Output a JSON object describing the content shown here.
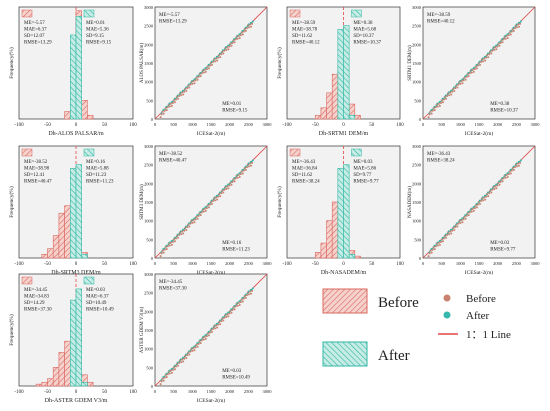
{
  "colors": {
    "before": "#d9675f",
    "before_fill": "#f6d2cd",
    "after": "#2fb7a4",
    "after_fill": "#c7ece5",
    "panel_bg": "#f2f2f2",
    "line": "#e04545",
    "point_before": "#c9826f",
    "point_after": "#36b8ac"
  },
  "legend": {
    "before": "Before",
    "after": "After",
    "line": "1：1 Line"
  },
  "chart_data": [
    {
      "type": "bar",
      "id": "hist-alos",
      "xlabel": "Dh-ALOS PALSAR/m",
      "ylabel": "Frequency(%)",
      "xlim": [
        -100,
        100
      ],
      "xticks": [
        "-100",
        "-50",
        "0",
        "50",
        "100"
      ],
      "centers": [
        -65,
        -55,
        -45,
        -35,
        -25,
        -15,
        -5,
        5,
        15,
        25
      ],
      "before": [
        0,
        0,
        0,
        0,
        0,
        4,
        18,
        58,
        10,
        2
      ],
      "after": [
        0,
        0,
        0,
        0,
        0,
        0,
        45,
        55,
        0,
        0
      ],
      "stats_before": [
        "ME=-5.57",
        "MAE=6.37",
        "SD=12.07",
        "RMSE=13.29"
      ],
      "stats_after": [
        "ME=0.01",
        "MAE=5.36",
        "SD=9.15",
        "RMSE=9.15"
      ]
    },
    {
      "type": "scatter",
      "id": "scat-alos",
      "xlabel": "ICESat-2(m)",
      "ylabel": "ALOS PALSAR(m)",
      "xlim": [
        0,
        3000
      ],
      "ylim": [
        0,
        3000
      ],
      "ticks": [
        "0",
        "500",
        "1000",
        "1500",
        "2000",
        "2500",
        "3000"
      ],
      "range": [
        0,
        2600
      ],
      "stats_before": [
        "ME=-5.57",
        "RMSE=13.29"
      ],
      "stats_after": [
        "ME=0.01",
        "RMSE=9.15"
      ]
    },
    {
      "type": "bar",
      "id": "hist-srtm1",
      "xlabel": "Dh-SRTM1 DEM/m",
      "ylabel": "Frequency(%)",
      "xlim": [
        -100,
        100
      ],
      "xticks": [
        "-100",
        "-50",
        "0",
        "50",
        "100"
      ],
      "centers": [
        -65,
        -55,
        -45,
        -35,
        -25,
        -15,
        -5,
        5,
        15,
        25
      ],
      "before": [
        0,
        0,
        2,
        6,
        14,
        24,
        28,
        16,
        8,
        2
      ],
      "after": [
        0,
        0,
        0,
        0,
        0,
        0,
        48,
        50,
        2,
        0
      ],
      "stats_before": [
        "ME=-38.59",
        "MAE=38.78",
        "SD=11.62",
        "RMSE=40.12"
      ],
      "stats_after": [
        "ME=0.38",
        "MAE=5.68",
        "SD=10.37",
        "RMSE=10.37"
      ]
    },
    {
      "type": "scatter",
      "id": "scat-srtm1",
      "xlabel": "ICESat-2(m)",
      "ylabel": "SRTM1 DEM(m)",
      "xlim": [
        0,
        3000
      ],
      "ylim": [
        0,
        3000
      ],
      "ticks": [
        "0",
        "500",
        "1000",
        "1500",
        "2000",
        "2500",
        "3000"
      ],
      "range": [
        0,
        2600
      ],
      "stats_before": [
        "ME=-38.59",
        "RMSE=40.12"
      ],
      "stats_after": [
        "ME=0.38",
        "RMSE=10.37"
      ]
    },
    {
      "type": "bar",
      "id": "hist-srtm3",
      "xlabel": "Dh-SRTM3 DEM/m",
      "ylabel": "Frequency(%)",
      "xlim": [
        -100,
        100
      ],
      "xticks": [
        "-100",
        "-50",
        "0",
        "50",
        "100"
      ],
      "centers": [
        -65,
        -55,
        -45,
        -35,
        -25,
        -15,
        -5,
        5,
        15,
        25
      ],
      "before": [
        0,
        2,
        5,
        12,
        24,
        28,
        18,
        8,
        3,
        0
      ],
      "after": [
        0,
        0,
        0,
        0,
        0,
        0,
        48,
        50,
        2,
        0
      ],
      "stats_before": [
        "ME=-38.52",
        "MAE=38.98",
        "SD=12.41",
        "RMSE=40.47"
      ],
      "stats_after": [
        "ME=0.16",
        "MAE=5.88",
        "SD=11.23",
        "RMSE=11.23"
      ]
    },
    {
      "type": "scatter",
      "id": "scat-srtm3",
      "xlabel": "ICESat-2(m)",
      "ylabel": "SRTM3 DEM(m)",
      "xlim": [
        0,
        3000
      ],
      "ylim": [
        0,
        3000
      ],
      "ticks": [
        "0",
        "500",
        "1000",
        "1500",
        "2000",
        "2500",
        "3000"
      ],
      "range": [
        0,
        2600
      ],
      "stats_before": [
        "ME=-38.52",
        "RMSE=40.47"
      ],
      "stats_after": [
        "ME=0.16",
        "RMSE=11.23"
      ]
    },
    {
      "type": "bar",
      "id": "hist-nasadem",
      "xlabel": "Dh-NASADEM/m",
      "ylabel": "Frequency(%)",
      "xlim": [
        -100,
        100
      ],
      "xticks": [
        "-100",
        "-50",
        "0",
        "50",
        "100"
      ],
      "centers": [
        -65,
        -55,
        -45,
        -35,
        -25,
        -15,
        -5,
        5,
        15,
        25
      ],
      "before": [
        0,
        0,
        3,
        8,
        20,
        30,
        22,
        12,
        4,
        1
      ],
      "after": [
        0,
        0,
        0,
        0,
        0,
        0,
        48,
        50,
        2,
        0
      ],
      "stats_before": [
        "ME=-36.43",
        "MAE=36.84",
        "SD=11.62",
        "RMSE=38.24"
      ],
      "stats_after": [
        "ME=0.03",
        "MAE=5.86",
        "SD=9.77",
        "RMSE=9.77"
      ]
    },
    {
      "type": "scatter",
      "id": "scat-nasadem",
      "xlabel": "ICESat-2(m)",
      "ylabel": "NASADEM(m)",
      "xlim": [
        0,
        3000
      ],
      "ylim": [
        0,
        3000
      ],
      "ticks": [
        "0",
        "500",
        "1000",
        "1500",
        "2000",
        "2500",
        "3000"
      ],
      "range": [
        0,
        2600
      ],
      "stats_before": [
        "ME=-36.43",
        "RMSE=38.24"
      ],
      "stats_after": [
        "ME=0.03",
        "RMSE=9.77"
      ]
    },
    {
      "type": "bar",
      "id": "hist-aster",
      "xlabel": "Dh-ASTER GDEM V3/m",
      "ylabel": "Frequency(%)",
      "xlim": [
        -100,
        100
      ],
      "xticks": [
        "-100",
        "-50",
        "0",
        "50",
        "100"
      ],
      "centers": [
        -65,
        -55,
        -45,
        -35,
        -25,
        -15,
        -5,
        5,
        15,
        25
      ],
      "before": [
        1,
        2,
        4,
        10,
        18,
        24,
        20,
        12,
        6,
        2
      ],
      "after": [
        0,
        0,
        0,
        0,
        0,
        0,
        46,
        52,
        2,
        0
      ],
      "stats_before": [
        "ME=-34.45",
        "MAE=34.83",
        "SD=14.29",
        "RMSE=37.30"
      ],
      "stats_after": [
        "ME=0.03",
        "MAE=6.37",
        "SD=10.49",
        "RMSE=10.49"
      ]
    },
    {
      "type": "scatter",
      "id": "scat-aster",
      "xlabel": "ICESat-2(m)",
      "ylabel": "ASTER GDEM V3(m)",
      "xlim": [
        0,
        3000
      ],
      "ylim": [
        0,
        3000
      ],
      "ticks": [
        "0",
        "500",
        "1000",
        "1500",
        "2000",
        "2500",
        "3000"
      ],
      "range": [
        0,
        2600
      ],
      "stats_before": [
        "ME=-34.45",
        "RMSE=37.30"
      ],
      "stats_after": [
        "ME=0.03",
        "RMSE=10.49"
      ]
    }
  ]
}
